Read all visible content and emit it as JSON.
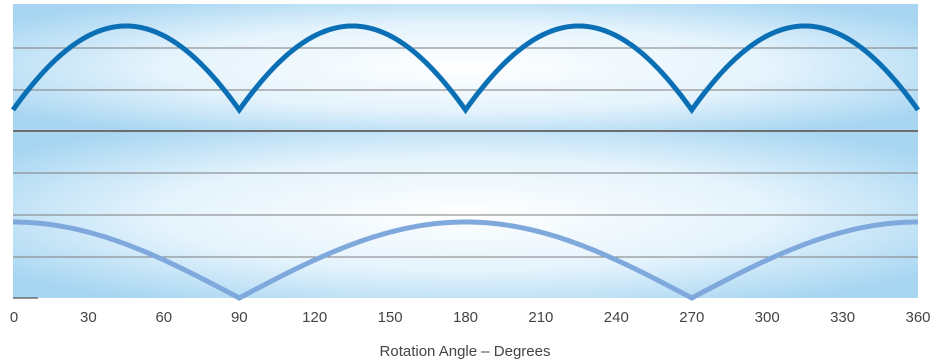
{
  "chart_data": {
    "type": "line",
    "xlabel": "Rotation Angle – Degrees",
    "x_ticks": [
      0,
      30,
      60,
      90,
      120,
      150,
      180,
      210,
      240,
      270,
      300,
      330,
      360
    ],
    "xlim": [
      0,
      360
    ],
    "grid": true,
    "colors": {
      "upper_series": "#0a6fb4",
      "lower_series": "#7fa8dc",
      "background_light": "#ffffff",
      "background_edge": "#a8d6f2",
      "gridline": "#7c7c7c",
      "divider": "#6e6e6e"
    },
    "series": [
      {
        "panel": "upper",
        "x": [
          0,
          15,
          30,
          45,
          60,
          75,
          90,
          105,
          120,
          135,
          150,
          165,
          180,
          195,
          210,
          225,
          240,
          255,
          270,
          285,
          300,
          315,
          330,
          345,
          360
        ],
        "values": [
          0.707,
          0.866,
          0.966,
          1.0,
          0.966,
          0.866,
          0.707,
          0.866,
          0.966,
          1.0,
          0.966,
          0.866,
          0.707,
          0.866,
          0.966,
          1.0,
          0.966,
          0.866,
          0.707,
          0.866,
          0.966,
          1.0,
          0.966,
          0.866,
          0.707
        ]
      },
      {
        "panel": "lower",
        "x": [
          0,
          15,
          30,
          45,
          60,
          75,
          90,
          105,
          120,
          135,
          150,
          165,
          180,
          195,
          210,
          225,
          240,
          255,
          270,
          285,
          300,
          315,
          330,
          345,
          360
        ],
        "values": [
          1.0,
          0.966,
          0.866,
          0.707,
          0.5,
          0.259,
          0.0,
          0.259,
          0.5,
          0.707,
          0.866,
          0.966,
          1.0,
          0.966,
          0.866,
          0.707,
          0.5,
          0.259,
          0.0,
          0.259,
          0.5,
          0.707,
          0.866,
          0.966,
          1.0
        ]
      }
    ]
  }
}
